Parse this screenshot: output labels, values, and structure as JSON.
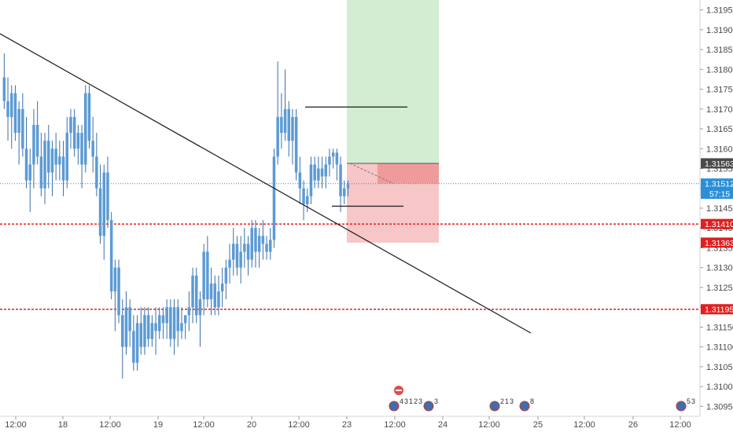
{
  "chart_data": {
    "type": "candlestick",
    "grid": false,
    "colors": {
      "candle_up": "#5b9bd5",
      "candle_down": "#5b9bd5",
      "wick": "#3a6fa8",
      "trendline": "#1a1a1a",
      "profit_zone": "#cdebcc",
      "loss_zone": "#f7c3c3",
      "loss_zone_strong": "#f09b9b",
      "level_line": "#e02020",
      "current_price_line": "#2a8fd8",
      "entry_tag": "#4a4a4a"
    },
    "price_axis": {
      "range": [
        1.30925,
        1.31975
      ],
      "ticks": [
        "1.31950",
        "1.31900",
        "1.31850",
        "1.31800",
        "1.31750",
        "1.31700",
        "1.31650",
        "1.31600",
        "1.31550",
        "1.31500",
        "1.31450",
        "1.31400",
        "1.31350",
        "1.31300",
        "1.31250",
        "1.31200",
        "1.31150",
        "1.31100",
        "1.31050",
        "1.31000",
        "1.30950"
      ]
    },
    "time_axis": {
      "ticks": [
        "12:00",
        "18",
        "12:00",
        "19",
        "12:00",
        "20",
        "12:00",
        "23",
        "12:00",
        "24",
        "12:00",
        "25",
        "12:00",
        "26",
        "12:00"
      ]
    },
    "price_tags": [
      {
        "label": "1.31563",
        "value": 1.31563,
        "kind": "entry"
      },
      {
        "label": "1.31512",
        "value": 1.31512,
        "kind": "current",
        "sub": "57:15"
      },
      {
        "label": "1.31410",
        "value": 1.3141,
        "kind": "level"
      },
      {
        "label": "1.31363",
        "value": 1.31363,
        "kind": "stop"
      },
      {
        "label": "1.31195",
        "value": 1.31195,
        "kind": "level"
      }
    ],
    "horizontal_levels": [
      1.3141,
      1.31195
    ],
    "position_tool": {
      "entry": 1.31563,
      "stop": 1.31363,
      "target": 1.31975
    },
    "resistance_line_value": 1.31705,
    "support_line_value": 1.31455,
    "trendline": {
      "start_value": 1.3189,
      "end_value": 1.31135
    },
    "candles": [
      {
        "o": 1.3178,
        "h": 1.3184,
        "l": 1.317,
        "c": 1.3172
      },
      {
        "o": 1.3172,
        "h": 1.3178,
        "l": 1.3162,
        "c": 1.3168
      },
      {
        "o": 1.3168,
        "h": 1.3176,
        "l": 1.316,
        "c": 1.3174
      },
      {
        "o": 1.3174,
        "h": 1.3176,
        "l": 1.3162,
        "c": 1.3164
      },
      {
        "o": 1.3164,
        "h": 1.3172,
        "l": 1.3156,
        "c": 1.317
      },
      {
        "o": 1.317,
        "h": 1.3174,
        "l": 1.3158,
        "c": 1.316
      },
      {
        "o": 1.316,
        "h": 1.3168,
        "l": 1.315,
        "c": 1.3152
      },
      {
        "o": 1.3152,
        "h": 1.316,
        "l": 1.3144,
        "c": 1.3156
      },
      {
        "o": 1.3156,
        "h": 1.317,
        "l": 1.315,
        "c": 1.3166
      },
      {
        "o": 1.3166,
        "h": 1.3172,
        "l": 1.3156,
        "c": 1.3158
      },
      {
        "o": 1.3158,
        "h": 1.3164,
        "l": 1.3148,
        "c": 1.315
      },
      {
        "o": 1.315,
        "h": 1.3164,
        "l": 1.3146,
        "c": 1.3162
      },
      {
        "o": 1.3162,
        "h": 1.3166,
        "l": 1.315,
        "c": 1.3154
      },
      {
        "o": 1.3154,
        "h": 1.3162,
        "l": 1.3148,
        "c": 1.316
      },
      {
        "o": 1.316,
        "h": 1.3164,
        "l": 1.3152,
        "c": 1.3156
      },
      {
        "o": 1.3156,
        "h": 1.3162,
        "l": 1.3152,
        "c": 1.3158
      },
      {
        "o": 1.3158,
        "h": 1.3162,
        "l": 1.3148,
        "c": 1.3152
      },
      {
        "o": 1.3152,
        "h": 1.3168,
        "l": 1.315,
        "c": 1.3164
      },
      {
        "o": 1.3164,
        "h": 1.317,
        "l": 1.316,
        "c": 1.3168
      },
      {
        "o": 1.3168,
        "h": 1.317,
        "l": 1.3158,
        "c": 1.316
      },
      {
        "o": 1.316,
        "h": 1.3166,
        "l": 1.3156,
        "c": 1.3164
      },
      {
        "o": 1.3164,
        "h": 1.3166,
        "l": 1.315,
        "c": 1.3156
      },
      {
        "o": 1.3156,
        "h": 1.3176,
        "l": 1.3154,
        "c": 1.3174
      },
      {
        "o": 1.3174,
        "h": 1.3176,
        "l": 1.316,
        "c": 1.3162
      },
      {
        "o": 1.3162,
        "h": 1.3168,
        "l": 1.3154,
        "c": 1.3158
      },
      {
        "o": 1.3158,
        "h": 1.3164,
        "l": 1.3148,
        "c": 1.315
      },
      {
        "o": 1.315,
        "h": 1.3156,
        "l": 1.3136,
        "c": 1.3138
      },
      {
        "o": 1.3138,
        "h": 1.3156,
        "l": 1.3132,
        "c": 1.3154
      },
      {
        "o": 1.3154,
        "h": 1.3158,
        "l": 1.314,
        "c": 1.3142
      },
      {
        "o": 1.3142,
        "h": 1.3144,
        "l": 1.3122,
        "c": 1.3124
      },
      {
        "o": 1.3124,
        "h": 1.3132,
        "l": 1.3114,
        "c": 1.313
      },
      {
        "o": 1.313,
        "h": 1.3132,
        "l": 1.3116,
        "c": 1.3118
      },
      {
        "o": 1.3118,
        "h": 1.3122,
        "l": 1.3102,
        "c": 1.311
      },
      {
        "o": 1.311,
        "h": 1.3124,
        "l": 1.3108,
        "c": 1.312
      },
      {
        "o": 1.312,
        "h": 1.3122,
        "l": 1.311,
        "c": 1.3114
      },
      {
        "o": 1.3114,
        "h": 1.3118,
        "l": 1.3104,
        "c": 1.3106
      },
      {
        "o": 1.3106,
        "h": 1.3118,
        "l": 1.3104,
        "c": 1.3116
      },
      {
        "o": 1.3116,
        "h": 1.312,
        "l": 1.3108,
        "c": 1.311
      },
      {
        "o": 1.311,
        "h": 1.312,
        "l": 1.3108,
        "c": 1.3118
      },
      {
        "o": 1.3118,
        "h": 1.312,
        "l": 1.311,
        "c": 1.3112
      },
      {
        "o": 1.3112,
        "h": 1.3118,
        "l": 1.311,
        "c": 1.3116
      },
      {
        "o": 1.3116,
        "h": 1.312,
        "l": 1.3108,
        "c": 1.3114
      },
      {
        "o": 1.3114,
        "h": 1.312,
        "l": 1.3112,
        "c": 1.3118
      },
      {
        "o": 1.3118,
        "h": 1.312,
        "l": 1.3112,
        "c": 1.3116
      },
      {
        "o": 1.3116,
        "h": 1.3122,
        "l": 1.3112,
        "c": 1.312
      },
      {
        "o": 1.312,
        "h": 1.3122,
        "l": 1.311,
        "c": 1.3112
      },
      {
        "o": 1.3112,
        "h": 1.3122,
        "l": 1.3108,
        "c": 1.312
      },
      {
        "o": 1.312,
        "h": 1.3122,
        "l": 1.311,
        "c": 1.3114
      },
      {
        "o": 1.3114,
        "h": 1.312,
        "l": 1.3112,
        "c": 1.3116
      },
      {
        "o": 1.3116,
        "h": 1.3118,
        "l": 1.3112,
        "c": 1.3118
      },
      {
        "o": 1.3118,
        "h": 1.3124,
        "l": 1.3114,
        "c": 1.312
      },
      {
        "o": 1.312,
        "h": 1.313,
        "l": 1.3116,
        "c": 1.3128
      },
      {
        "o": 1.3128,
        "h": 1.313,
        "l": 1.3116,
        "c": 1.3118
      },
      {
        "o": 1.3118,
        "h": 1.3124,
        "l": 1.311,
        "c": 1.3122
      },
      {
        "o": 1.3122,
        "h": 1.3136,
        "l": 1.3118,
        "c": 1.3134
      },
      {
        "o": 1.3134,
        "h": 1.3138,
        "l": 1.312,
        "c": 1.3122
      },
      {
        "o": 1.3122,
        "h": 1.313,
        "l": 1.3118,
        "c": 1.3126
      },
      {
        "o": 1.3126,
        "h": 1.3128,
        "l": 1.3118,
        "c": 1.312
      },
      {
        "o": 1.312,
        "h": 1.3128,
        "l": 1.3118,
        "c": 1.3124
      },
      {
        "o": 1.3124,
        "h": 1.313,
        "l": 1.312,
        "c": 1.3126
      },
      {
        "o": 1.3126,
        "h": 1.3132,
        "l": 1.3122,
        "c": 1.313
      },
      {
        "o": 1.313,
        "h": 1.3136,
        "l": 1.3126,
        "c": 1.3132
      },
      {
        "o": 1.3132,
        "h": 1.314,
        "l": 1.3128,
        "c": 1.3136
      },
      {
        "o": 1.3136,
        "h": 1.3138,
        "l": 1.3128,
        "c": 1.313
      },
      {
        "o": 1.313,
        "h": 1.3138,
        "l": 1.3126,
        "c": 1.3134
      },
      {
        "o": 1.3134,
        "h": 1.314,
        "l": 1.313,
        "c": 1.3136
      },
      {
        "o": 1.3136,
        "h": 1.3138,
        "l": 1.3128,
        "c": 1.3132
      },
      {
        "o": 1.3132,
        "h": 1.3142,
        "l": 1.313,
        "c": 1.314
      },
      {
        "o": 1.314,
        "h": 1.3142,
        "l": 1.313,
        "c": 1.3134
      },
      {
        "o": 1.3134,
        "h": 1.314,
        "l": 1.313,
        "c": 1.3138
      },
      {
        "o": 1.3138,
        "h": 1.3142,
        "l": 1.3132,
        "c": 1.3136
      },
      {
        "o": 1.3136,
        "h": 1.3138,
        "l": 1.3132,
        "c": 1.3134
      },
      {
        "o": 1.3134,
        "h": 1.314,
        "l": 1.3132,
        "c": 1.3137
      },
      {
        "o": 1.3137,
        "h": 1.316,
        "l": 1.3135,
        "c": 1.3158
      },
      {
        "o": 1.3158,
        "h": 1.3182,
        "l": 1.3156,
        "c": 1.3168
      },
      {
        "o": 1.3168,
        "h": 1.3174,
        "l": 1.316,
        "c": 1.3164
      },
      {
        "o": 1.3164,
        "h": 1.318,
        "l": 1.3162,
        "c": 1.317
      },
      {
        "o": 1.317,
        "h": 1.3172,
        "l": 1.3158,
        "c": 1.3162
      },
      {
        "o": 1.3162,
        "h": 1.317,
        "l": 1.3156,
        "c": 1.3168
      },
      {
        "o": 1.3168,
        "h": 1.317,
        "l": 1.3152,
        "c": 1.3154
      },
      {
        "o": 1.3154,
        "h": 1.3158,
        "l": 1.3146,
        "c": 1.315
      },
      {
        "o": 1.315,
        "h": 1.3152,
        "l": 1.3142,
        "c": 1.3146
      },
      {
        "o": 1.3146,
        "h": 1.315,
        "l": 1.3144,
        "c": 1.3148
      },
      {
        "o": 1.3148,
        "h": 1.3158,
        "l": 1.3146,
        "c": 1.3156
      },
      {
        "o": 1.3156,
        "h": 1.3158,
        "l": 1.315,
        "c": 1.3152
      },
      {
        "o": 1.3152,
        "h": 1.3158,
        "l": 1.315,
        "c": 1.3155
      },
      {
        "o": 1.3155,
        "h": 1.3158,
        "l": 1.315,
        "c": 1.3153
      },
      {
        "o": 1.3153,
        "h": 1.3158,
        "l": 1.315,
        "c": 1.3156
      },
      {
        "o": 1.3156,
        "h": 1.316,
        "l": 1.3153,
        "c": 1.3158
      },
      {
        "o": 1.3158,
        "h": 1.316,
        "l": 1.3155,
        "c": 1.3159
      },
      {
        "o": 1.3159,
        "h": 1.316,
        "l": 1.3152,
        "c": 1.3156
      },
      {
        "o": 1.3156,
        "h": 1.3158,
        "l": 1.3144,
        "c": 1.3148
      },
      {
        "o": 1.3148,
        "h": 1.3152,
        "l": 1.3146,
        "c": 1.315
      },
      {
        "o": 1.315,
        "h": 1.3152,
        "l": 1.3148,
        "c": 1.3151
      }
    ],
    "events": [
      {
        "labels": [
          "4",
          "3",
          "1",
          "2",
          "3"
        ]
      },
      {
        "labels": [
          "3"
        ]
      },
      {
        "labels": [
          "2",
          "1",
          "3"
        ]
      },
      {
        "labels": [
          "8"
        ]
      },
      {
        "labels": [
          "5",
          "3"
        ]
      }
    ]
  }
}
